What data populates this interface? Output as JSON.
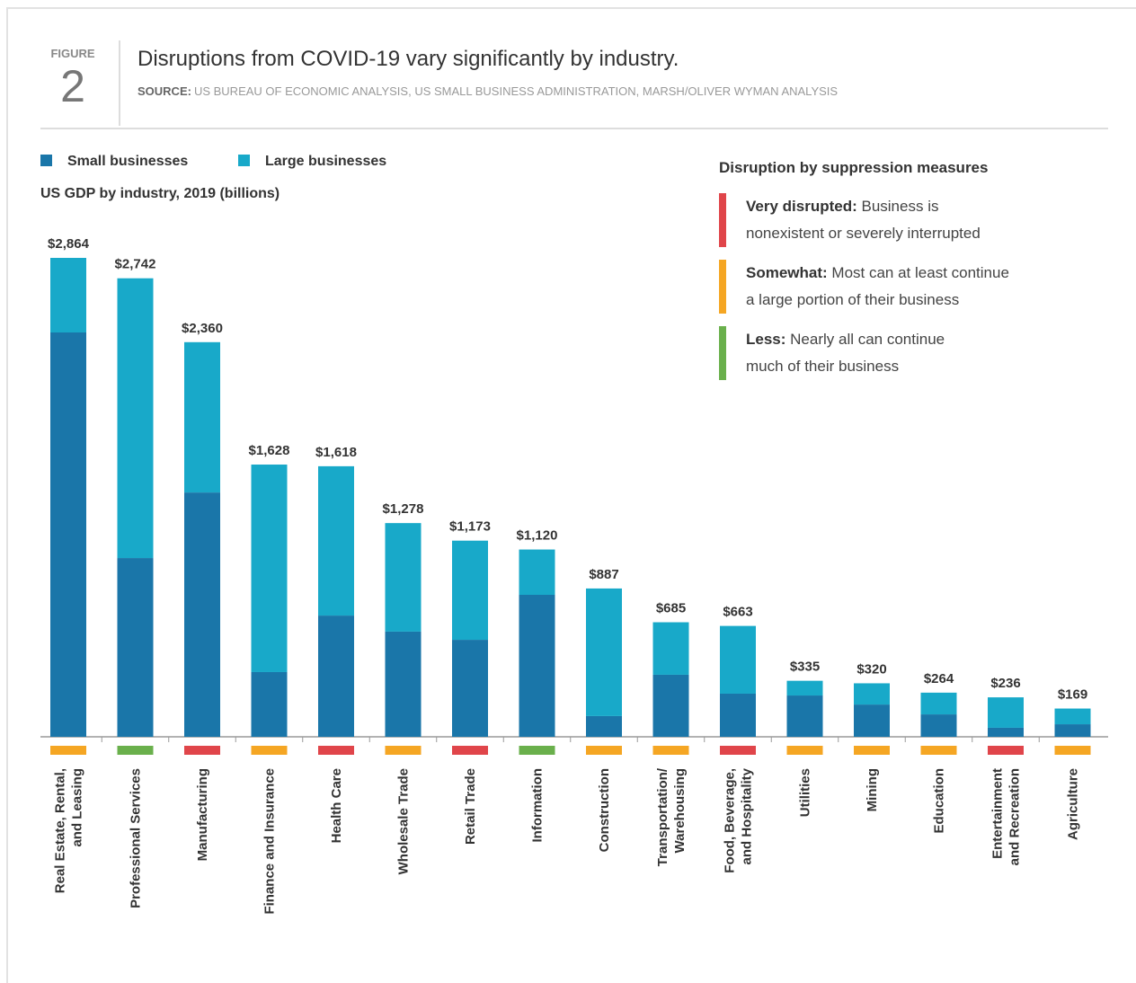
{
  "chart_data": {
    "type": "stacked_bar",
    "figure_label": "FIGURE",
    "figure_number": "2",
    "title": "Disruptions from COVID-19 vary significantly by industry.",
    "source_label": "SOURCE:",
    "source": "US BUREAU OF ECONOMIC ANALYSIS, US SMALL BUSINESS ADMINISTRATION, MARSH/OLIVER WYMAN ANALYSIS",
    "y_label": "US GDP by industry, 2019 (billions)",
    "categories": [
      "Real Estate, Rental,\nand Leasing",
      "Professional Services",
      "Manufacturing",
      "Finance and Insurance",
      "Health Care",
      "Wholesale Trade",
      "Retail Trade",
      "Information",
      "Construction",
      "Transportation/\nWarehousing",
      "Food, Beverage,\nand Hospitality",
      "Utilities",
      "Mining",
      "Education",
      "Entertainment\nand Recreation",
      "Agriculture"
    ],
    "series": [
      {
        "name": "Small businesses",
        "color": "#1a76a9",
        "values": [
          2418,
          1069,
          1461,
          387,
          725,
          629,
          580,
          849,
          124,
          371,
          258,
          247,
          193,
          134,
          54,
          75
        ]
      },
      {
        "name": "Large businesses",
        "color": "#18a9c9",
        "values": [
          446,
          1673,
          899,
          1241,
          893,
          649,
          593,
          271,
          763,
          314,
          405,
          88,
          127,
          130,
          182,
          94
        ]
      }
    ],
    "totals": {
      "values": [
        2864,
        2742,
        2360,
        1628,
        1618,
        1278,
        1173,
        1120,
        887,
        685,
        663,
        335,
        320,
        264,
        236,
        169
      ],
      "value_labels": [
        "$2,864",
        "$2,742",
        "$2,360",
        "$1,628",
        "$1,618",
        "$1,278",
        "$1,173",
        "$1,120",
        "$887",
        "$685",
        "$663",
        "$335",
        "$320",
        "$264",
        "$236",
        "$169"
      ]
    },
    "disruption_colors": [
      "#f5a623",
      "#6ab04c",
      "#e0454a",
      "#f5a623",
      "#e0454a",
      "#f5a623",
      "#e0454a",
      "#6ab04c",
      "#f5a623",
      "#f5a623",
      "#e0454a",
      "#f5a623",
      "#f5a623",
      "#f5a623",
      "#e0454a",
      "#f5a623"
    ],
    "disruption_legend": {
      "title": "Disruption by suppression measures",
      "items": [
        {
          "term": "Very disrupted:",
          "description": " Business is\nnonexistent or severely interrupted",
          "color": "#e0454a"
        },
        {
          "term": "Somewhat:",
          "description": " Most can at least continue\na large portion of their business",
          "color": "#f5a623"
        },
        {
          "term": "Less:",
          "description": " Nearly all can continue\nmuch of their business",
          "color": "#6ab04c"
        }
      ]
    }
  }
}
